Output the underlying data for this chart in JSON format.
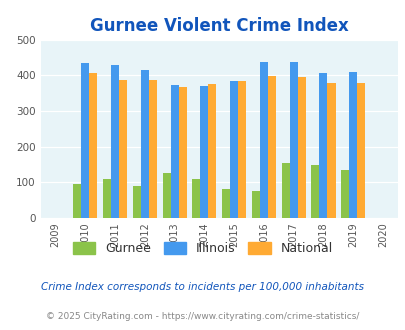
{
  "title": "Gurnee Violent Crime Index",
  "all_years": [
    2009,
    2010,
    2011,
    2012,
    2013,
    2014,
    2015,
    2016,
    2017,
    2018,
    2019,
    2020
  ],
  "data_years": [
    2010,
    2011,
    2012,
    2013,
    2014,
    2015,
    2016,
    2017,
    2018,
    2019
  ],
  "gurnee": [
    96,
    110,
    90,
    127,
    110,
    80,
    76,
    153,
    147,
    135
  ],
  "illinois": [
    433,
    428,
    415,
    372,
    369,
    383,
    438,
    438,
    405,
    409
  ],
  "national": [
    405,
    387,
    387,
    366,
    375,
    383,
    397,
    394,
    379,
    379
  ],
  "gurnee_color": "#8bc34a",
  "illinois_color": "#4499ee",
  "national_color": "#ffaa33",
  "background_color": "#e8f4f8",
  "title_color": "#1155bb",
  "legend_label_color": "#333333",
  "footnote1_color": "#1155bb",
  "footnote2_color": "#888888",
  "xlim": [
    2008.5,
    2020.5
  ],
  "ylim": [
    0,
    500
  ],
  "yticks": [
    0,
    100,
    200,
    300,
    400,
    500
  ],
  "footnote1": "Crime Index corresponds to incidents per 100,000 inhabitants",
  "footnote2": "© 2025 CityRating.com - https://www.cityrating.com/crime-statistics/",
  "legend_labels": [
    "Gurnee",
    "Illinois",
    "National"
  ],
  "bar_width": 0.27
}
